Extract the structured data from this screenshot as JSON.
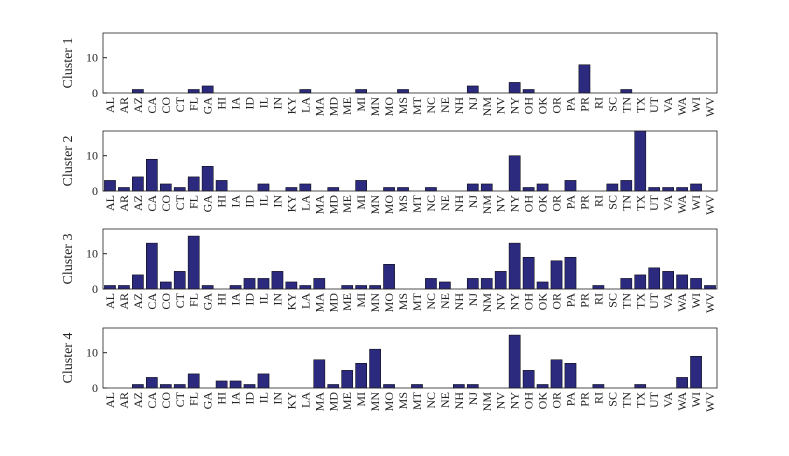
{
  "chart_data": [
    {
      "type": "bar",
      "ylabel": "Cluster 1",
      "color": "#2c2a7e",
      "ylim": [
        0,
        17
      ],
      "yticks": [
        0,
        10
      ],
      "categories": [
        "AL",
        "AR",
        "AZ",
        "CA",
        "CO",
        "CT",
        "FL",
        "GA",
        "HI",
        "IA",
        "ID",
        "IL",
        "IN",
        "KY",
        "LA",
        "MA",
        "MD",
        "ME",
        "MI",
        "MN",
        "MO",
        "MS",
        "MT",
        "NC",
        "NE",
        "NH",
        "NJ",
        "NM",
        "NV",
        "NY",
        "OH",
        "OK",
        "OR",
        "PA",
        "PR",
        "RI",
        "SC",
        "TN",
        "TX",
        "UT",
        "VA",
        "WA",
        "WI",
        "WV"
      ],
      "values": [
        0,
        0,
        1,
        0,
        0,
        0,
        1,
        2,
        0,
        0,
        0,
        0,
        0,
        0,
        1,
        0,
        0,
        0,
        1,
        0,
        0,
        1,
        0,
        0,
        0,
        0,
        2,
        0,
        0,
        3,
        1,
        0,
        0,
        0,
        8,
        0,
        0,
        1,
        0,
        0,
        0,
        0,
        0,
        0
      ]
    },
    {
      "type": "bar",
      "ylabel": "Cluster 2",
      "color": "#2c2a7e",
      "ylim": [
        0,
        17
      ],
      "yticks": [
        0,
        10
      ],
      "categories": [
        "AL",
        "AR",
        "AZ",
        "CA",
        "CO",
        "CT",
        "FL",
        "GA",
        "HI",
        "IA",
        "ID",
        "IL",
        "IN",
        "KY",
        "LA",
        "MA",
        "MD",
        "ME",
        "MI",
        "MN",
        "MO",
        "MS",
        "MT",
        "NC",
        "NE",
        "NH",
        "NJ",
        "NM",
        "NV",
        "NY",
        "OH",
        "OK",
        "OR",
        "PA",
        "PR",
        "RI",
        "SC",
        "TN",
        "TX",
        "UT",
        "VA",
        "WA",
        "WI",
        "WV"
      ],
      "values": [
        3,
        1,
        4,
        9,
        2,
        1,
        4,
        7,
        3,
        0,
        0,
        2,
        0,
        1,
        2,
        0,
        1,
        0,
        3,
        0,
        1,
        1,
        0,
        1,
        0,
        0,
        2,
        2,
        0,
        10,
        1,
        2,
        0,
        3,
        0,
        0,
        2,
        3,
        17,
        1,
        1,
        1,
        2,
        0
      ]
    },
    {
      "type": "bar",
      "ylabel": "Cluster 3",
      "color": "#2c2a7e",
      "ylim": [
        0,
        17
      ],
      "yticks": [
        0,
        10
      ],
      "categories": [
        "AL",
        "AR",
        "AZ",
        "CA",
        "CO",
        "CT",
        "FL",
        "GA",
        "HI",
        "IA",
        "ID",
        "IL",
        "IN",
        "KY",
        "LA",
        "MA",
        "MD",
        "ME",
        "MI",
        "MN",
        "MO",
        "MS",
        "MT",
        "NC",
        "NE",
        "NH",
        "NJ",
        "NM",
        "NV",
        "NY",
        "OH",
        "OK",
        "OR",
        "PA",
        "PR",
        "RI",
        "SC",
        "TN",
        "TX",
        "UT",
        "VA",
        "WA",
        "WI",
        "WV"
      ],
      "values": [
        1,
        1,
        4,
        13,
        2,
        5,
        15,
        1,
        0,
        1,
        3,
        3,
        5,
        2,
        1,
        3,
        0,
        1,
        1,
        1,
        7,
        0,
        0,
        3,
        2,
        0,
        3,
        3,
        5,
        13,
        9,
        2,
        8,
        9,
        0,
        1,
        0,
        3,
        4,
        6,
        5,
        4,
        3,
        1
      ]
    },
    {
      "type": "bar",
      "ylabel": "Cluster 4",
      "color": "#2c2a7e",
      "ylim": [
        0,
        17
      ],
      "yticks": [
        0,
        10
      ],
      "categories": [
        "AL",
        "AR",
        "AZ",
        "CA",
        "CO",
        "CT",
        "FL",
        "GA",
        "HI",
        "IA",
        "ID",
        "IL",
        "IN",
        "KY",
        "LA",
        "MA",
        "MD",
        "ME",
        "MI",
        "MN",
        "MO",
        "MS",
        "MT",
        "NC",
        "NE",
        "NH",
        "NJ",
        "NM",
        "NV",
        "NY",
        "OH",
        "OK",
        "OR",
        "PA",
        "PR",
        "RI",
        "SC",
        "TN",
        "TX",
        "UT",
        "VA",
        "WA",
        "WI",
        "WV"
      ],
      "values": [
        0,
        0,
        1,
        3,
        1,
        1,
        4,
        0,
        2,
        2,
        1,
        4,
        0,
        0,
        0,
        8,
        1,
        5,
        7,
        11,
        1,
        0,
        1,
        0,
        0,
        1,
        1,
        0,
        0,
        15,
        5,
        1,
        8,
        7,
        0,
        1,
        0,
        0,
        1,
        0,
        0,
        3,
        9,
        0
      ]
    }
  ]
}
